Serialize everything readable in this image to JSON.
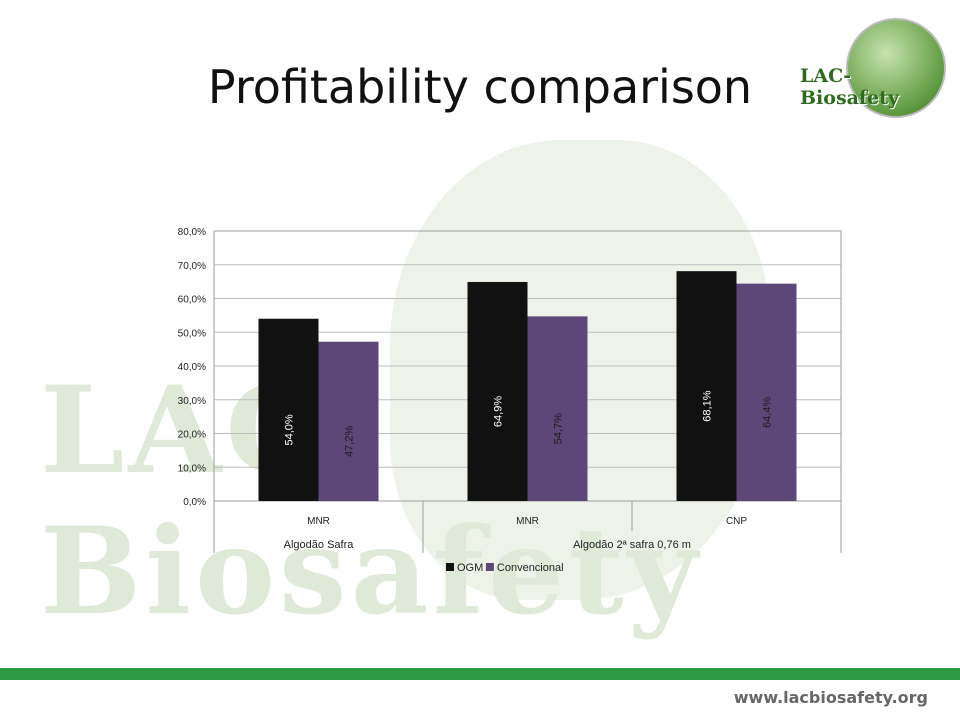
{
  "slide": {
    "title": "Profitability comparison",
    "logo_text": "LAC-Biosafety",
    "watermark_text": "LAC-Biosafety",
    "footer_url": "www.lacbiosafety.org",
    "footer_color": "#2e9a44"
  },
  "chart_data": {
    "type": "bar",
    "title": "",
    "xlabel": "",
    "ylabel": "",
    "ylim": [
      0,
      80
    ],
    "yticks": [
      "0,0%",
      "10,0%",
      "20,0%",
      "30,0%",
      "40,0%",
      "50,0%",
      "60,0%",
      "70,0%",
      "80,0%"
    ],
    "categories": [
      "MNR",
      "MNR",
      "CNP"
    ],
    "groups": [
      {
        "label": "Algodão Safra",
        "span": 1
      },
      {
        "label": "Algodão 2ª safra 0,76 m",
        "span": 2
      }
    ],
    "series": [
      {
        "name": "OGM",
        "color": "#111111",
        "values": [
          54.0,
          64.9,
          68.1
        ],
        "labels": [
          "54,0%",
          "64,9%",
          "68,1%"
        ]
      },
      {
        "name": "Convencional",
        "color": "#5d4778",
        "values": [
          47.2,
          54.7,
          64.4
        ],
        "labels": [
          "47,2%",
          "54,7%",
          "64,4%"
        ]
      }
    ],
    "grid": true,
    "legend": "bottom"
  }
}
